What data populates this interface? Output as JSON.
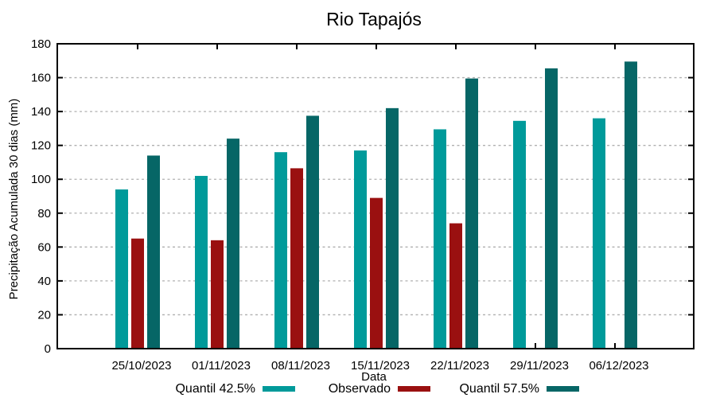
{
  "chart_data": {
    "type": "bar",
    "title": "Rio Tapajós",
    "xlabel": "Data",
    "ylabel": "Precipitação Acumulada 30 dias (mm)",
    "categories": [
      "25/10/2023",
      "01/11/2023",
      "08/11/2023",
      "15/11/2023",
      "22/11/2023",
      "29/11/2023",
      "06/12/2023"
    ],
    "series": [
      {
        "name": "Quantil 42.5%",
        "color": "#009a9a",
        "values": [
          94,
          102,
          116,
          117,
          129.5,
          134.5,
          136
        ]
      },
      {
        "name": "Observado",
        "color": "#9a1010",
        "values": [
          65,
          64,
          106.5,
          89,
          74,
          null,
          null
        ]
      },
      {
        "name": "Quantil 57.5%",
        "color": "#066666",
        "values": [
          114,
          124,
          137.5,
          142,
          159.5,
          165.5,
          169.5
        ]
      }
    ],
    "ylim": [
      0,
      180
    ],
    "ytick_step": 20,
    "grid": "horizontal-dashed",
    "grid_color": "#b0b0b0",
    "axis_color": "#000000",
    "background": "#ffffff",
    "legend_position": "bottom"
  }
}
